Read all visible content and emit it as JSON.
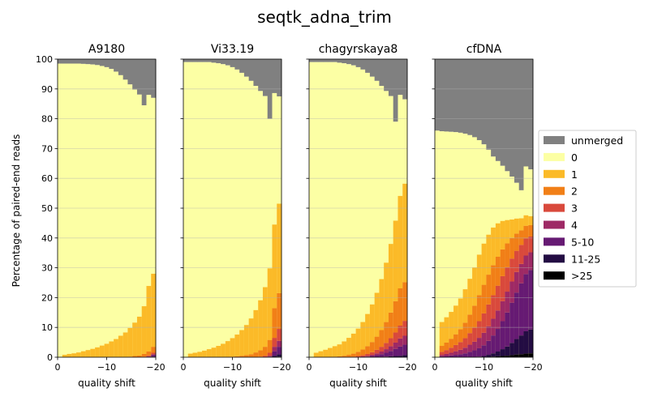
{
  "chart_data": {
    "type": "bar",
    "title": "seqtk_adna_trim",
    "ylabel": "Percentage of paired-end reads",
    "xlabel": "quality shift",
    "ylim": [
      0,
      100
    ],
    "xlim": [
      0,
      -20
    ],
    "xticks": [
      0,
      -10,
      -20
    ],
    "xtick_labels": [
      "0",
      "−10",
      "−20"
    ],
    "yticks": [
      0,
      10,
      20,
      30,
      40,
      50,
      60,
      70,
      80,
      90,
      100
    ],
    "shift_values": [
      0,
      -1,
      -2,
      -3,
      -4,
      -5,
      -6,
      -7,
      -8,
      -9,
      -10,
      -11,
      -12,
      -13,
      -14,
      -15,
      -16,
      -17,
      -18,
      -19,
      -20
    ],
    "grid": "horizontal",
    "legend_position": "right",
    "categories": [
      {
        "label": "unmerged",
        "color": "#808080"
      },
      {
        "label": "0",
        "color": "#fcffa4"
      },
      {
        "label": "1",
        "color": "#fbba28"
      },
      {
        "label": "2",
        "color": "#f17f17"
      },
      {
        "label": "3",
        "color": "#d9493c"
      },
      {
        "label": "4",
        "color": "#9e2965"
      },
      {
        "label": "5-10",
        "color": "#661a73"
      },
      {
        "label": "11-25",
        "color": "#230c43"
      },
      {
        "label": ">25",
        "color": "#000000"
      }
    ],
    "panels": [
      {
        "title": "A9180",
        "unmerged_top": [
          98.5,
          98.5,
          98.5,
          98.5,
          98.5,
          98.4,
          98.3,
          98.2,
          98.0,
          97.7,
          97.3,
          96.7,
          95.8,
          94.6,
          93.1,
          91.5,
          89.8,
          88.1,
          84.5,
          88.0,
          87.0
        ],
        "series": [
          {
            "name": "1",
            "values": [
              0,
              0.8,
              1.1,
              1.3,
              1.6,
              2.0,
              2.4,
              2.8,
              3.3,
              3.9,
              4.5,
              5.3,
              6.1,
              7.2,
              8.3,
              9.6,
              11.2,
              13.0,
              16.0,
              22.0,
              24.5
            ]
          },
          {
            "name": "2",
            "values": [
              0,
              0,
              0,
              0,
              0,
              0,
              0,
              0,
              0,
              0,
              0,
              0,
              0,
              0,
              0,
              0.2,
              0.4,
              0.6,
              0.9,
              1.3,
              2.0
            ]
          },
          {
            "name": "3",
            "values": [
              0,
              0,
              0,
              0,
              0,
              0,
              0,
              0,
              0,
              0,
              0,
              0,
              0,
              0,
              0,
              0,
              0,
              0,
              0.2,
              0.3,
              0.5
            ]
          },
          {
            "name": "4",
            "values": [
              0,
              0,
              0,
              0,
              0,
              0,
              0,
              0,
              0,
              0,
              0,
              0,
              0,
              0,
              0,
              0,
              0,
              0,
              0,
              0.1,
              0.3
            ]
          },
          {
            "name": "5-10",
            "values": [
              0,
              0,
              0,
              0,
              0,
              0,
              0,
              0,
              0,
              0,
              0,
              0,
              0,
              0,
              0,
              0,
              0,
              0,
              0,
              0.2,
              0.5
            ]
          },
          {
            "name": "11-25",
            "values": [
              0,
              0,
              0,
              0,
              0,
              0,
              0,
              0,
              0,
              0,
              0,
              0,
              0,
              0,
              0,
              0,
              0,
              0,
              0,
              0,
              0.2
            ]
          },
          {
            "name": ">25",
            "values": [
              0,
              0,
              0,
              0,
              0,
              0,
              0,
              0,
              0,
              0,
              0,
              0,
              0,
              0,
              0,
              0,
              0,
              0,
              0,
              0,
              0
            ]
          }
        ]
      },
      {
        "title": "Vi33.19",
        "unmerged_top": [
          99,
          99,
          99,
          99,
          99,
          99,
          98.8,
          98.6,
          98.3,
          97.9,
          97.3,
          96.5,
          95.4,
          94.1,
          92.7,
          91.0,
          89.3,
          87.6,
          80.0,
          88.6,
          87.5
        ],
        "series": [
          {
            "name": "1",
            "values": [
              0,
              1.2,
              1.5,
              1.8,
              2.2,
              2.7,
              3.2,
              3.8,
              4.5,
              5.3,
              6.2,
              7.3,
              8.6,
              10.1,
              12.0,
              14.2,
              16.8,
              20.0,
              24.0,
              28.0,
              30.0
            ]
          },
          {
            "name": "2",
            "values": [
              0,
              0,
              0,
              0,
              0,
              0,
              0,
              0,
              0,
              0.1,
              0.2,
              0.3,
              0.5,
              0.7,
              1.0,
              1.5,
              2.1,
              3.0,
              4.3,
              10.0,
              12.0
            ]
          },
          {
            "name": "3",
            "values": [
              0,
              0,
              0,
              0,
              0,
              0,
              0,
              0,
              0,
              0,
              0,
              0,
              0,
              0,
              0,
              0.1,
              0.2,
              0.5,
              1.0,
              3.0,
              4.0
            ]
          },
          {
            "name": "4",
            "values": [
              0,
              0,
              0,
              0,
              0,
              0,
              0,
              0,
              0,
              0,
              0,
              0,
              0,
              0,
              0,
              0,
              0,
              0,
              0.3,
              1.5,
              2.0
            ]
          },
          {
            "name": "5-10",
            "values": [
              0,
              0,
              0,
              0,
              0,
              0,
              0,
              0,
              0,
              0,
              0,
              0,
              0,
              0,
              0,
              0,
              0,
              0,
              0.2,
              1.5,
              2.5
            ]
          },
          {
            "name": "11-25",
            "values": [
              0,
              0,
              0,
              0,
              0,
              0,
              0,
              0,
              0,
              0,
              0,
              0,
              0,
              0,
              0,
              0,
              0,
              0,
              0,
              0.5,
              0.8
            ]
          },
          {
            "name": ">25",
            "values": [
              0,
              0,
              0,
              0,
              0,
              0,
              0,
              0,
              0,
              0,
              0,
              0,
              0,
              0,
              0,
              0,
              0,
              0,
              0,
              0,
              0.2
            ]
          }
        ]
      },
      {
        "title": "chagyrskaya8",
        "unmerged_top": [
          99,
          99,
          99,
          99,
          99,
          99,
          98.8,
          98.6,
          98.3,
          97.9,
          97.3,
          96.5,
          95.4,
          94.1,
          92.7,
          91.0,
          89.3,
          87.6,
          79.0,
          88.0,
          86.5
        ],
        "series": [
          {
            "name": "1",
            "values": [
              0,
              1.5,
              2.0,
              2.5,
              3.0,
              3.5,
              4.0,
              4.8,
              5.7,
              6.7,
              7.8,
              9.2,
              10.8,
              12.6,
              14.7,
              17.1,
              19.9,
              23.0,
              27.0,
              31.0,
              33.0
            ]
          },
          {
            "name": "2",
            "values": [
              0,
              0,
              0,
              0,
              0.1,
              0.2,
              0.3,
              0.5,
              0.7,
              1.0,
              1.4,
              1.9,
              2.6,
              3.4,
              4.4,
              5.6,
              7.0,
              8.6,
              10.5,
              12.5,
              13.0
            ]
          },
          {
            "name": "3",
            "values": [
              0,
              0,
              0,
              0,
              0,
              0,
              0,
              0,
              0.1,
              0.2,
              0.3,
              0.4,
              0.6,
              0.9,
              1.2,
              1.6,
              2.1,
              2.7,
              3.4,
              4.3,
              5.0
            ]
          },
          {
            "name": "4",
            "values": [
              0,
              0,
              0,
              0,
              0,
              0,
              0,
              0,
              0,
              0,
              0.1,
              0.2,
              0.3,
              0.4,
              0.6,
              0.9,
              1.2,
              1.6,
              2.1,
              2.7,
              3.0
            ]
          },
          {
            "name": "5-10",
            "values": [
              0,
              0,
              0,
              0,
              0,
              0,
              0,
              0,
              0,
              0,
              0,
              0.1,
              0.2,
              0.4,
              0.6,
              0.9,
              1.3,
              1.8,
              2.4,
              3.1,
              3.5
            ]
          },
          {
            "name": "11-25",
            "values": [
              0,
              0,
              0,
              0,
              0,
              0,
              0,
              0,
              0,
              0,
              0,
              0,
              0,
              0,
              0.1,
              0.1,
              0.2,
              0.3,
              0.4,
              0.5,
              0.6
            ]
          },
          {
            "name": ">25",
            "values": [
              0,
              0,
              0,
              0,
              0,
              0,
              0,
              0,
              0,
              0,
              0,
              0,
              0,
              0,
              0,
              0,
              0,
              0,
              0,
              0,
              0.1
            ]
          }
        ]
      },
      {
        "title": "cfDNA",
        "unmerged_top": [
          76,
          75.8,
          75.7,
          75.6,
          75.5,
          75.3,
          75.0,
          74.5,
          73.8,
          72.8,
          71.4,
          69.6,
          67.3,
          65.8,
          64.2,
          62.4,
          60.6,
          58.5,
          56.0,
          64.0,
          63.0
        ],
        "series": [
          {
            "name": "1",
            "values": [
              0,
              8.0,
              8.5,
              9.0,
              9.6,
              10.3,
              11.2,
              12.0,
              12.8,
              13.6,
              13.8,
              13.4,
              12.6,
              11.2,
              9.5,
              7.8,
              6.2,
              5.0,
              4.0,
              3.5,
              3.0
            ]
          },
          {
            "name": "2",
            "values": [
              0,
              2.0,
              2.5,
              3.0,
              3.6,
              4.3,
              5.2,
              6.2,
              7.4,
              8.7,
              9.6,
              10.0,
              10.1,
              9.7,
              9.0,
              8.0,
              6.9,
              5.8,
              4.9,
              4.2,
              3.8
            ]
          },
          {
            "name": "3",
            "values": [
              0,
              1.0,
              1.3,
              1.7,
              2.1,
              2.6,
              3.2,
              3.9,
              4.7,
              5.6,
              6.5,
              7.3,
              7.9,
              8.3,
              8.4,
              8.2,
              7.7,
              7.1,
              6.4,
              5.8,
              5.3
            ]
          },
          {
            "name": "4",
            "values": [
              0,
              0.5,
              0.7,
              0.9,
              1.2,
              1.5,
              1.9,
              2.4,
              2.9,
              3.5,
              4.2,
              4.9,
              5.6,
              6.2,
              6.7,
              7.0,
              7.1,
              6.9,
              6.5,
              6.2,
              5.9
            ]
          },
          {
            "name": "5-10",
            "values": [
              0,
              0.3,
              0.4,
              0.6,
              0.8,
              1.0,
              1.3,
              1.7,
              2.2,
              2.8,
              3.6,
              4.7,
              6.0,
              7.6,
              9.4,
              11.4,
              13.5,
              15.6,
              17.5,
              19.2,
              20.0
            ]
          },
          {
            "name": "11-25",
            "values": [
              0,
              0,
              0,
              0,
              0,
              0,
              0,
              0.1,
              0.1,
              0.2,
              0.4,
              0.7,
              1.1,
              1.6,
              2.3,
              3.1,
              4.1,
              5.2,
              6.3,
              7.5,
              8.0
            ]
          },
          {
            "name": ">25",
            "values": [
              0,
              0,
              0,
              0,
              0,
              0,
              0,
              0,
              0,
              0,
              0,
              0.1,
              0.2,
              0.3,
              0.4,
              0.5,
              0.7,
              0.9,
              1.0,
              1.2,
              1.3
            ]
          }
        ]
      }
    ]
  }
}
